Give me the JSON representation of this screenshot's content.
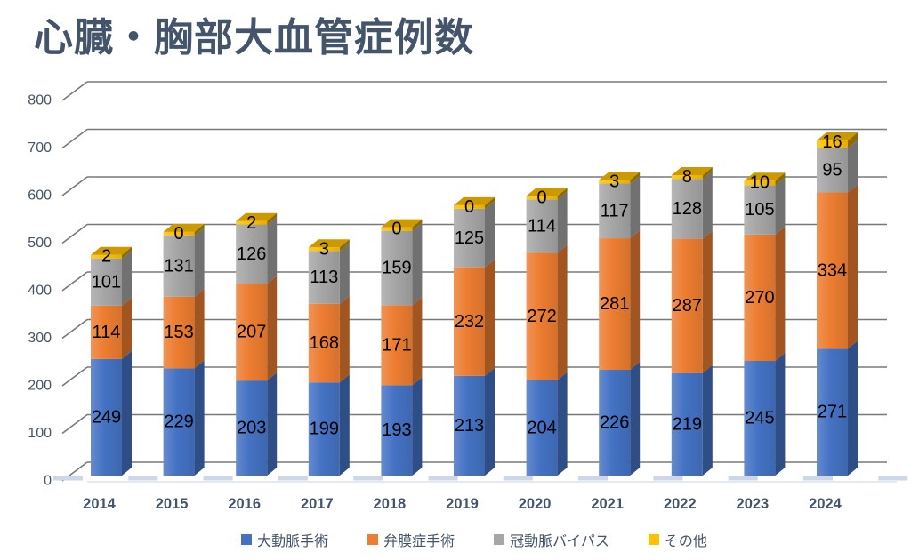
{
  "page": {
    "title": "心臓・胸部大血管症例数"
  },
  "chart_data": {
    "type": "bar",
    "variant": "3d-stacked-column",
    "title": "心臓・胸部大血管症例数",
    "categories": [
      "2014",
      "2015",
      "2016",
      "2017",
      "2018",
      "2019",
      "2020",
      "2021",
      "2022",
      "2023",
      "2024"
    ],
    "series": [
      {
        "name": "大動脈手術",
        "color": "#4472C4",
        "values": [
          249,
          229,
          203,
          199,
          193,
          213,
          204,
          226,
          219,
          245,
          271
        ]
      },
      {
        "name": "弁膜症手術",
        "color": "#ED7D31",
        "values": [
          114,
          153,
          207,
          168,
          171,
          232,
          272,
          281,
          287,
          270,
          334
        ]
      },
      {
        "name": "冠動脈バイパス",
        "color": "#A6A6A6",
        "values": [
          101,
          131,
          126,
          113,
          159,
          125,
          114,
          117,
          128,
          105,
          95
        ]
      },
      {
        "name": "その他",
        "color": "#FFC000",
        "values": [
          2,
          0,
          2,
          3,
          0,
          0,
          0,
          3,
          8,
          10,
          16
        ]
      }
    ],
    "yticks": [
      0,
      100,
      200,
      300,
      400,
      500,
      600,
      700,
      800
    ],
    "ylim": [
      0,
      800
    ],
    "grid": true,
    "legend_position": "bottom",
    "value_labels_shown": true,
    "colors": {
      "axis_text": "#44546A",
      "gridline": "#787878",
      "value_label": "#000000",
      "floor_line": "#E4E9F2"
    }
  }
}
